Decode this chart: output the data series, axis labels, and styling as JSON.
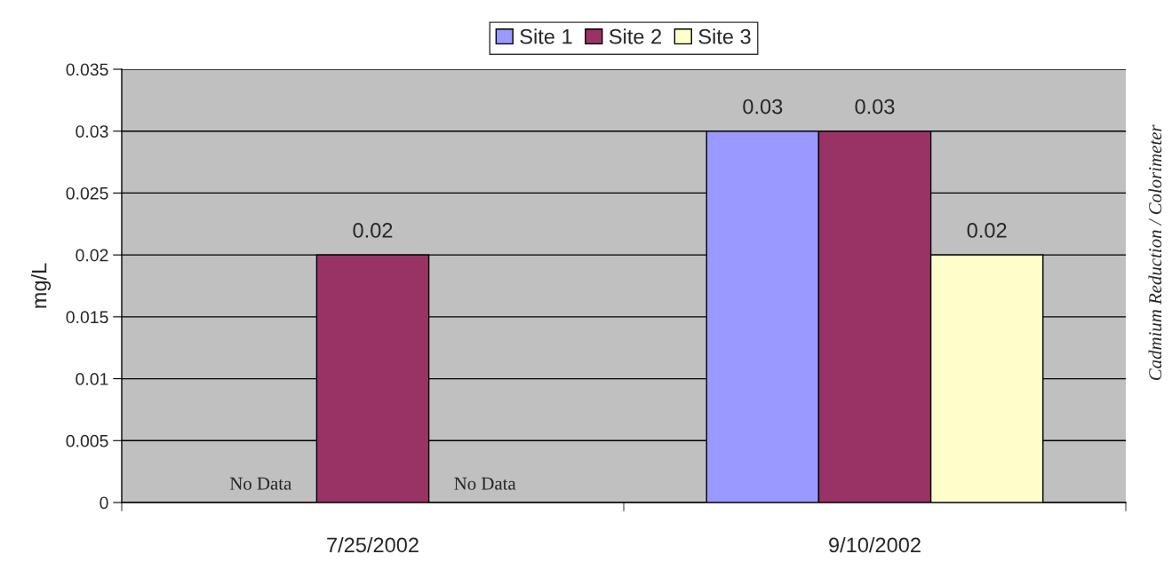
{
  "chart_data": {
    "type": "bar",
    "ylabel": "mg/L",
    "categories": [
      "7/25/2002",
      "9/10/2002"
    ],
    "series": [
      {
        "name": "Site 1",
        "color": "#9999ff",
        "values": [
          null,
          0.03
        ],
        "value_labels": [
          "No Data",
          "0.03"
        ]
      },
      {
        "name": "Site 2",
        "color": "#993366",
        "values": [
          0.02,
          0.03
        ],
        "value_labels": [
          "0.02",
          "0.03"
        ]
      },
      {
        "name": "Site 3",
        "color": "#ffffcc",
        "values": [
          null,
          0.02
        ],
        "value_labels": [
          "No Data",
          "0.02"
        ]
      }
    ],
    "ylim": [
      0,
      0.035
    ],
    "yticks": [
      0,
      0.005,
      0.01,
      0.015,
      0.02,
      0.025,
      0.03,
      0.035
    ],
    "grid": "y",
    "legend": "top",
    "annotations": [
      "Cadmium Reduction / Colorimeter"
    ]
  }
}
